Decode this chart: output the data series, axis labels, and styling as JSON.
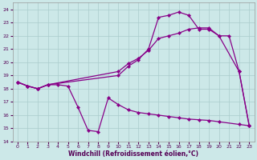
{
  "xlabel": "Windchill (Refroidissement éolien,°C)",
  "bg_color": "#cce8e8",
  "line_color": "#880088",
  "grid_color": "#aacccc",
  "ylim": [
    14,
    24.5
  ],
  "xlim": [
    -0.5,
    23.5
  ],
  "yticks": [
    14,
    15,
    16,
    17,
    18,
    19,
    20,
    21,
    22,
    23,
    24
  ],
  "xticks": [
    0,
    1,
    2,
    3,
    4,
    5,
    6,
    7,
    8,
    9,
    10,
    11,
    12,
    13,
    14,
    15,
    16,
    17,
    18,
    19,
    20,
    21,
    22,
    23
  ],
  "s1_x": [
    0,
    1,
    2,
    3,
    4,
    5,
    6,
    7,
    8,
    9,
    10,
    11,
    12,
    13,
    14,
    15,
    16,
    17,
    18,
    19,
    20,
    22,
    23
  ],
  "s1_y": [
    18.5,
    18.2,
    18.0,
    18.3,
    18.3,
    18.2,
    16.6,
    14.85,
    14.75,
    17.3,
    16.8,
    16.4,
    16.2,
    16.1,
    16.0,
    15.9,
    15.8,
    15.7,
    15.65,
    15.6,
    15.5,
    15.3,
    15.2
  ],
  "s2_x": [
    0,
    1,
    2,
    3,
    10,
    11,
    12,
    13,
    14,
    15,
    16,
    17,
    18,
    19,
    20,
    22,
    23
  ],
  "s2_y": [
    18.5,
    18.2,
    18.0,
    18.3,
    19.0,
    19.7,
    20.2,
    21.0,
    23.4,
    23.55,
    23.8,
    23.55,
    22.5,
    22.5,
    22.0,
    19.3,
    15.2
  ],
  "s3_x": [
    0,
    1,
    2,
    3,
    10,
    11,
    12,
    13,
    14,
    15,
    16,
    17,
    18,
    19,
    20,
    21,
    22,
    23
  ],
  "s3_y": [
    18.5,
    18.2,
    18.0,
    18.3,
    19.3,
    19.9,
    20.3,
    20.9,
    21.8,
    22.0,
    22.2,
    22.5,
    22.6,
    22.6,
    22.0,
    22.0,
    19.3,
    15.2
  ]
}
